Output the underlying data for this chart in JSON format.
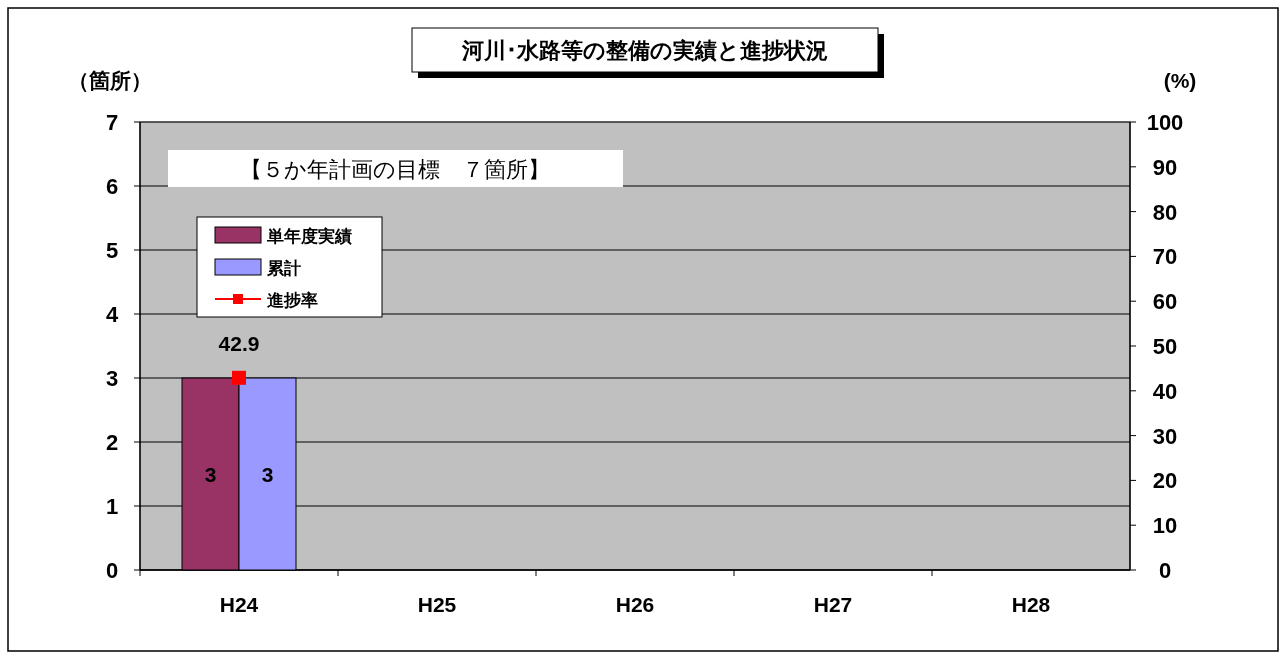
{
  "chart_data": {
    "type": "bar",
    "title": "河川･水路等の整備の実績と進捗状況",
    "ylabel": "（箇所）",
    "y2label": "(%)",
    "annotations": [
      "【５か年計画の目標　７箇所】"
    ],
    "categories": [
      "H24",
      "H25",
      "H26",
      "H27",
      "H28"
    ],
    "series": [
      {
        "name": "単年度実績",
        "color": "#993366",
        "values": [
          3,
          null,
          null,
          null,
          null
        ]
      },
      {
        "name": "累計",
        "color": "#9999ff",
        "values": [
          3,
          null,
          null,
          null,
          null
        ]
      },
      {
        "name": "進捗率",
        "type": "line",
        "axis": "y2",
        "color": "#ff0000",
        "values": [
          42.9,
          null,
          null,
          null,
          null
        ]
      }
    ],
    "ylim": [
      0,
      7
    ],
    "yticks": [
      0,
      1,
      2,
      3,
      4,
      5,
      6,
      7
    ],
    "y2lim": [
      0,
      100
    ],
    "y2ticks": [
      0,
      10,
      20,
      30,
      40,
      50,
      60,
      70,
      80,
      90,
      100
    ],
    "grid": "y",
    "legend": "top left",
    "marker": "square",
    "data_labels": true
  }
}
